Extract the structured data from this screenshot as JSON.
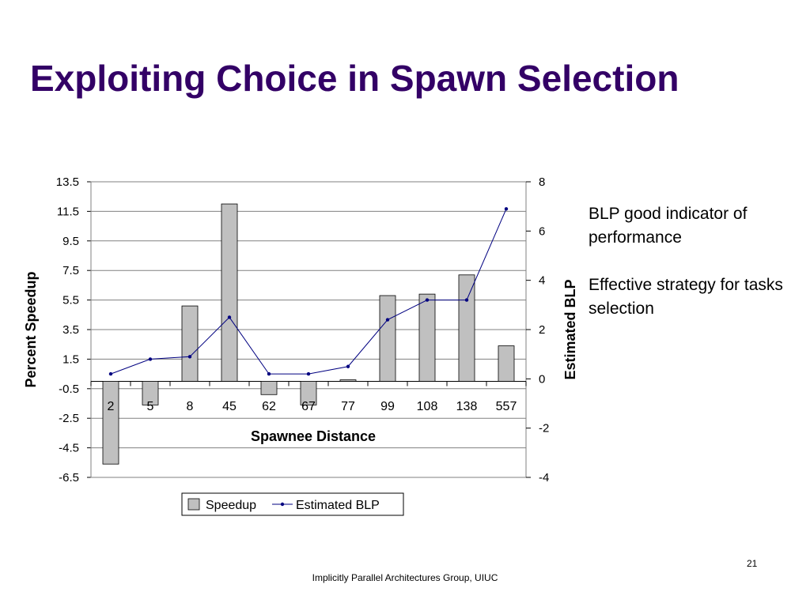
{
  "slide": {
    "title": "Exploiting Choice in Spawn Selection",
    "notes": [
      "BLP good indicator of performance",
      "Effective strategy for tasks selection"
    ],
    "page_number": "21",
    "footer": "Implicitly Parallel Architectures Group, UIUC"
  },
  "colors": {
    "title": "#330066",
    "bar_fill": "#c0c0c0",
    "bar_stroke": "#000000",
    "line": "#000080",
    "grid": "#808080"
  },
  "chart_data": {
    "type": "bar",
    "title": "",
    "categories": [
      "2",
      "5",
      "8",
      "45",
      "62",
      "67",
      "77",
      "99",
      "108",
      "138",
      "557"
    ],
    "xlabel": "Spawnee Distance",
    "ylabel": "Percent Speedup",
    "y2label": "Estimated BLP",
    "ylim": [
      -6.5,
      13.5
    ],
    "yticks": [
      "13.5",
      "11.5",
      "9.5",
      "7.5",
      "5.5",
      "3.5",
      "1.5",
      "-0.5",
      "-2.5",
      "-4.5",
      "-6.5"
    ],
    "y2lim": [
      -4,
      8
    ],
    "y2ticks": [
      "8",
      "6",
      "4",
      "2",
      "0",
      "-2",
      "-4"
    ],
    "grid": true,
    "legend_position": "bottom",
    "series": [
      {
        "name": "Speedup",
        "kind": "bar",
        "axis": "left",
        "values": [
          -5.6,
          -1.6,
          5.1,
          12.0,
          -0.9,
          -1.6,
          0.1,
          5.8,
          5.9,
          7.2,
          2.4
        ]
      },
      {
        "name": "Estimated BLP",
        "kind": "line",
        "axis": "right",
        "values": [
          0.2,
          0.8,
          0.9,
          2.5,
          0.2,
          0.2,
          0.5,
          2.4,
          3.2,
          3.2,
          6.9
        ]
      }
    ]
  }
}
